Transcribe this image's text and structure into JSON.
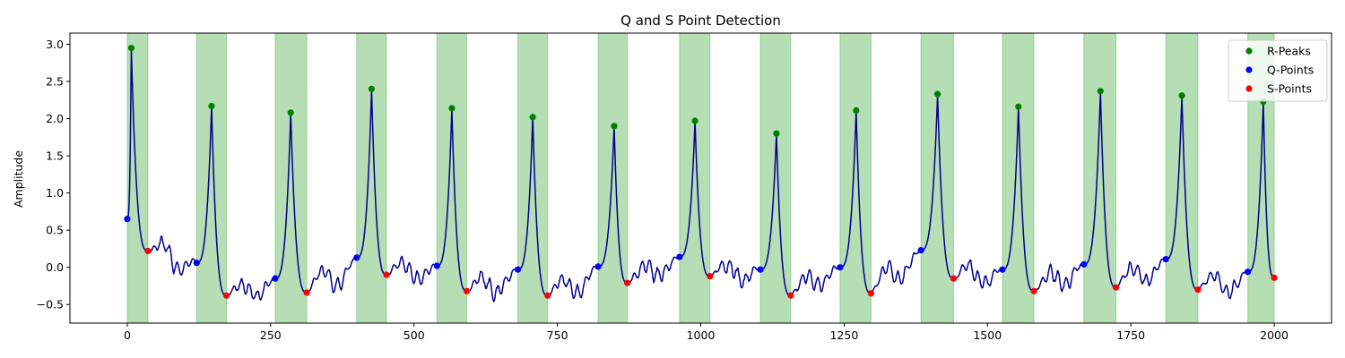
{
  "chart_data": {
    "type": "line",
    "title": "Q and S Point Detection",
    "xlabel": "",
    "ylabel": "Amplitude",
    "xlim": [
      -100,
      2100
    ],
    "ylim": [
      -0.75,
      3.15
    ],
    "x_ticks": [
      0,
      250,
      500,
      750,
      1000,
      1250,
      1500,
      1750,
      2000
    ],
    "y_ticks": [
      -0.5,
      0.0,
      0.5,
      1.0,
      1.5,
      2.0,
      2.5,
      3.0
    ],
    "grid": false,
    "legend_position": "top-right",
    "colors": {
      "signal": "#00008b",
      "r_peaks": "#008000",
      "q_points": "#0000ff",
      "s_points": "#ff0000",
      "shading": "#2ca02c"
    },
    "shaded_regions": [
      [
        0,
        36
      ],
      [
        121,
        173
      ],
      [
        258,
        313
      ],
      [
        400,
        452
      ],
      [
        540,
        592
      ],
      [
        681,
        733
      ],
      [
        821,
        872
      ],
      [
        963,
        1016
      ],
      [
        1104,
        1157
      ],
      [
        1243,
        1297
      ],
      [
        1384,
        1441
      ],
      [
        1526,
        1581
      ],
      [
        1668,
        1724
      ],
      [
        1811,
        1867
      ],
      [
        1954,
        2000
      ]
    ],
    "series": [
      {
        "name": "R-Peaks",
        "marker_type": "r",
        "x": [
          7,
          147,
          285,
          426,
          566,
          707,
          849,
          990,
          1132,
          1271,
          1413,
          1554,
          1697,
          1839,
          1981
        ],
        "y": [
          2.95,
          2.17,
          2.08,
          2.4,
          2.14,
          2.02,
          1.9,
          1.97,
          1.8,
          2.11,
          2.33,
          2.16,
          2.37,
          2.31,
          2.23
        ]
      },
      {
        "name": "Q-Points",
        "marker_type": "q",
        "x": [
          0,
          121,
          258,
          400,
          540,
          681,
          821,
          963,
          1104,
          1243,
          1384,
          1526,
          1668,
          1811,
          1954
        ],
        "y": [
          0.65,
          0.06,
          -0.15,
          0.13,
          0.02,
          -0.03,
          0.01,
          0.14,
          -0.03,
          0.0,
          0.23,
          -0.03,
          0.04,
          0.11,
          -0.06
        ]
      },
      {
        "name": "S-Points",
        "marker_type": "s",
        "x": [
          36,
          173,
          313,
          452,
          592,
          733,
          872,
          1016,
          1157,
          1297,
          1441,
          1581,
          1724,
          1867,
          2000
        ],
        "y": [
          0.22,
          -0.38,
          -0.34,
          -0.1,
          -0.32,
          -0.38,
          -0.21,
          -0.12,
          -0.38,
          -0.35,
          -0.15,
          -0.32,
          -0.27,
          -0.3,
          -0.14
        ]
      }
    ]
  }
}
